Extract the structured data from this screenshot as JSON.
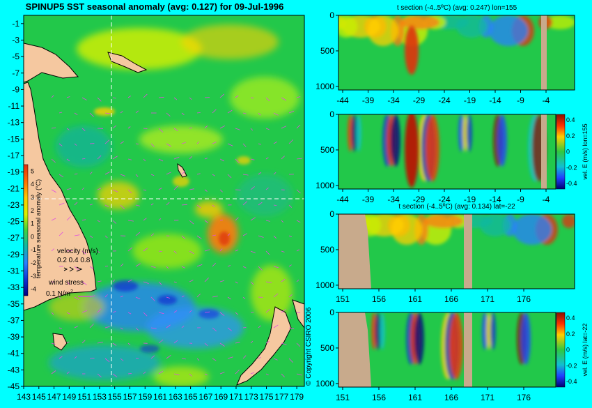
{
  "main_map": {
    "title": "SPINUP5 SST seasonal anomaly (avg: 0.127) for 09-Jul-1996",
    "y_ticks": [
      "-1",
      "-3",
      "-5",
      "-7",
      "-9",
      "-11",
      "-13",
      "-15",
      "-17",
      "-19",
      "-21",
      "-23",
      "-25",
      "-27",
      "-29",
      "-31",
      "-33",
      "-35",
      "-37",
      "-39",
      "-41",
      "-43",
      "-45"
    ],
    "x_ticks": [
      "143",
      "145",
      "147",
      "149",
      "151",
      "153",
      "155",
      "157",
      "159",
      "161",
      "163",
      "165",
      "167",
      "169",
      "171",
      "173",
      "175",
      "177",
      "179"
    ],
    "colorbar_label": "temperature seasonal anomaly (°C)",
    "colorbar_ticks": [
      "5",
      "4",
      "3",
      "2",
      "1",
      "0",
      "-1",
      "-2",
      "-3",
      "-4"
    ],
    "velocity_label": "velocity (m/s)",
    "velocity_scale": "0.2 0.4 0.8",
    "wind_label": "wind stress",
    "wind_scale": "0.1 N/m",
    "wind_scale_sup": "2",
    "crosshair_lon": 155,
    "crosshair_lat": -22,
    "lon_range": [
      143,
      180
    ],
    "lat_range": [
      -45,
      0
    ]
  },
  "copyright": "© Copyright CSIRO 2006",
  "panels": [
    {
      "title": "t section (-4..5ºC) (avg: 0.247) lon=155",
      "x_ticks": [
        "-44",
        "-39",
        "-34",
        "-29",
        "-24",
        "-19",
        "-14",
        "-9",
        "-4"
      ],
      "y_ticks": [
        "0",
        "500",
        "1000"
      ],
      "colorbar": false
    },
    {
      "title": "",
      "x_ticks": [
        "-44",
        "-39",
        "-34",
        "-29",
        "-24",
        "-19",
        "-14",
        "-9",
        "-4"
      ],
      "y_ticks": [
        "0",
        "500",
        "1000"
      ],
      "colorbar": true,
      "colorbar_label": "vel. E (m/s) lon=155",
      "colorbar_ticks": [
        "0.4",
        "0.2",
        "0",
        "-0.2",
        "-0.4"
      ]
    },
    {
      "title": "t section (-4..5ºC) (avg: 0.134) lat=-22",
      "x_ticks": [
        "151",
        "156",
        "161",
        "166",
        "171",
        "176"
      ],
      "y_ticks": [
        "0",
        "500",
        "1000"
      ],
      "colorbar": false
    },
    {
      "title": "",
      "x_ticks": [
        "151",
        "156",
        "161",
        "166",
        "171",
        "176"
      ],
      "y_ticks": [
        "0",
        "500",
        "1000"
      ],
      "colorbar": true,
      "colorbar_label": "vel. E (m/s) lat=-22",
      "colorbar_ticks": [
        "0.4",
        "0.2",
        "0",
        "-0.2",
        "-0.4"
      ]
    }
  ],
  "colors": {
    "background": "#00ffff",
    "land": "#f5c8a0",
    "section_land": "#c8aa8c",
    "ocean_base": "#22c84a"
  },
  "chart_data": [
    {
      "type": "heatmap",
      "title": "SPINUP5 SST seasonal anomaly (avg: 0.127) for 09-Jul-1996",
      "xlabel": "",
      "ylabel": "",
      "x_ticks": [
        143,
        145,
        147,
        149,
        151,
        153,
        155,
        157,
        159,
        161,
        163,
        165,
        167,
        169,
        171,
        173,
        175,
        177,
        179
      ],
      "y_ticks": [
        -1,
        -3,
        -5,
        -7,
        -9,
        -11,
        -13,
        -15,
        -17,
        -19,
        -21,
        -23,
        -25,
        -27,
        -29,
        -31,
        -33,
        -35,
        -37,
        -39,
        -41,
        -43,
        -45
      ],
      "color_range": [
        -4,
        5
      ],
      "average": 0.127
    },
    {
      "type": "heatmap",
      "title": "t section (-4..5ºC) (avg: 0.247) lon=155",
      "x_ticks": [
        -44,
        -39,
        -34,
        -29,
        -24,
        -19,
        -14,
        -9,
        -4
      ],
      "y_ticks": [
        0,
        500,
        1000
      ],
      "color_range": [
        -4,
        5
      ],
      "average": 0.247
    },
    {
      "type": "heatmap",
      "title": "",
      "colorbar_label": "vel. E (m/s) lon=155",
      "x_ticks": [
        -44,
        -39,
        -34,
        -29,
        -24,
        -19,
        -14,
        -9,
        -4
      ],
      "y_ticks": [
        0,
        500,
        1000
      ],
      "color_range": [
        -0.4,
        0.4
      ]
    },
    {
      "type": "heatmap",
      "title": "t section (-4..5ºC) (avg: 0.134) lat=-22",
      "x_ticks": [
        151,
        156,
        161,
        166,
        171,
        176
      ],
      "y_ticks": [
        0,
        500,
        1000
      ],
      "color_range": [
        -4,
        5
      ],
      "average": 0.134
    },
    {
      "type": "heatmap",
      "title": "",
      "colorbar_label": "vel. E (m/s) lat=-22",
      "x_ticks": [
        151,
        156,
        161,
        166,
        171,
        176
      ],
      "y_ticks": [
        0,
        500,
        1000
      ],
      "color_range": [
        -0.4,
        0.4
      ]
    }
  ]
}
